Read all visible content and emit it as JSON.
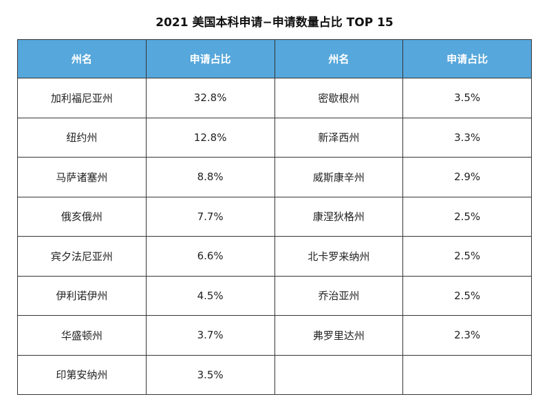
{
  "title": "2021 美国本科申请−申请数量占比 TOP 15",
  "table": {
    "header": [
      "州名",
      "申请占比",
      "州名",
      "申请占比"
    ],
    "rows": [
      [
        "加利福尼亚州",
        "32.8%",
        "密歇根州",
        "3.5%"
      ],
      [
        "纽约州",
        "12.8%",
        "新泽西州",
        "3.3%"
      ],
      [
        "马萨诸塞州",
        "8.8%",
        "威斯康辛州",
        "2.9%"
      ],
      [
        "俄亥俄州",
        "7.7%",
        "康涅狄格州",
        "2.5%"
      ],
      [
        "宾夕法尼亚州",
        "6.6%",
        "北卡罗来纳州",
        "2.5%"
      ],
      [
        "伊利诺伊州",
        "4.5%",
        "乔治亚州",
        "2.5%"
      ],
      [
        "华盛顿州",
        "3.7%",
        "弗罗里达州",
        "2.3%"
      ],
      [
        "印第安纳州",
        "3.5%"
      ]
    ]
  }
}
